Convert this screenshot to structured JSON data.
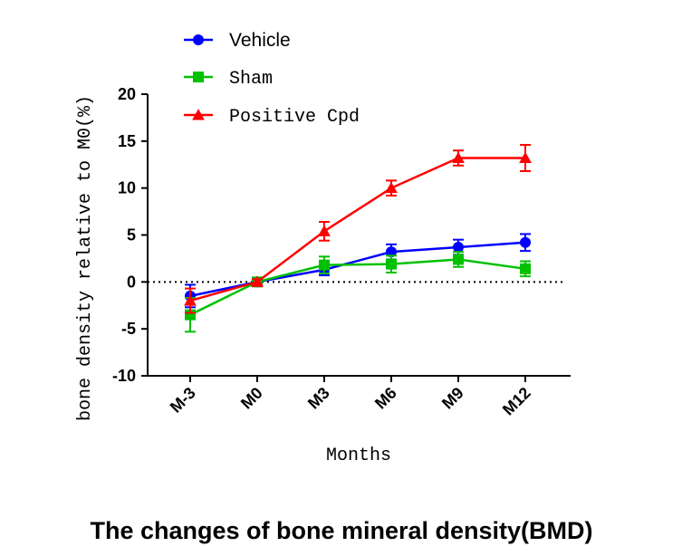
{
  "caption": "The changes of bone mineral density(BMD)",
  "chart_data": {
    "type": "line",
    "title": "",
    "xlabel": "Months",
    "ylabel": "bone density relative to M0(%)",
    "categories": [
      "M-3",
      "M0",
      "M3",
      "M6",
      "M9",
      "M12"
    ],
    "ylim": [
      -10,
      20
    ],
    "yticks": [
      -10,
      -5,
      0,
      5,
      10,
      15,
      20
    ],
    "ytick_labels": [
      "-10",
      "-5",
      "0",
      "5",
      "10",
      "15",
      "20"
    ],
    "reference_line": 0,
    "grid": false,
    "legend_position": "top-left",
    "series": [
      {
        "name": "Vehicle",
        "color": "#0000ff",
        "marker": "circle",
        "values": [
          -1.5,
          0,
          1.3,
          3.2,
          3.7,
          4.2
        ],
        "errors": [
          1.2,
          0.3,
          0.6,
          0.8,
          0.8,
          0.9
        ]
      },
      {
        "name": "Sham",
        "color": "#00c000",
        "marker": "square",
        "values": [
          -3.5,
          0,
          1.8,
          1.9,
          2.4,
          1.4
        ],
        "errors": [
          1.8,
          0.3,
          0.9,
          0.9,
          0.8,
          0.8
        ]
      },
      {
        "name": "Positive Cpd",
        "color": "#ff0000",
        "marker": "triangle",
        "values": [
          -2.0,
          0,
          5.4,
          10.0,
          13.2,
          13.2
        ],
        "errors": [
          1.3,
          0.3,
          1.0,
          0.8,
          0.8,
          1.4
        ]
      }
    ]
  }
}
